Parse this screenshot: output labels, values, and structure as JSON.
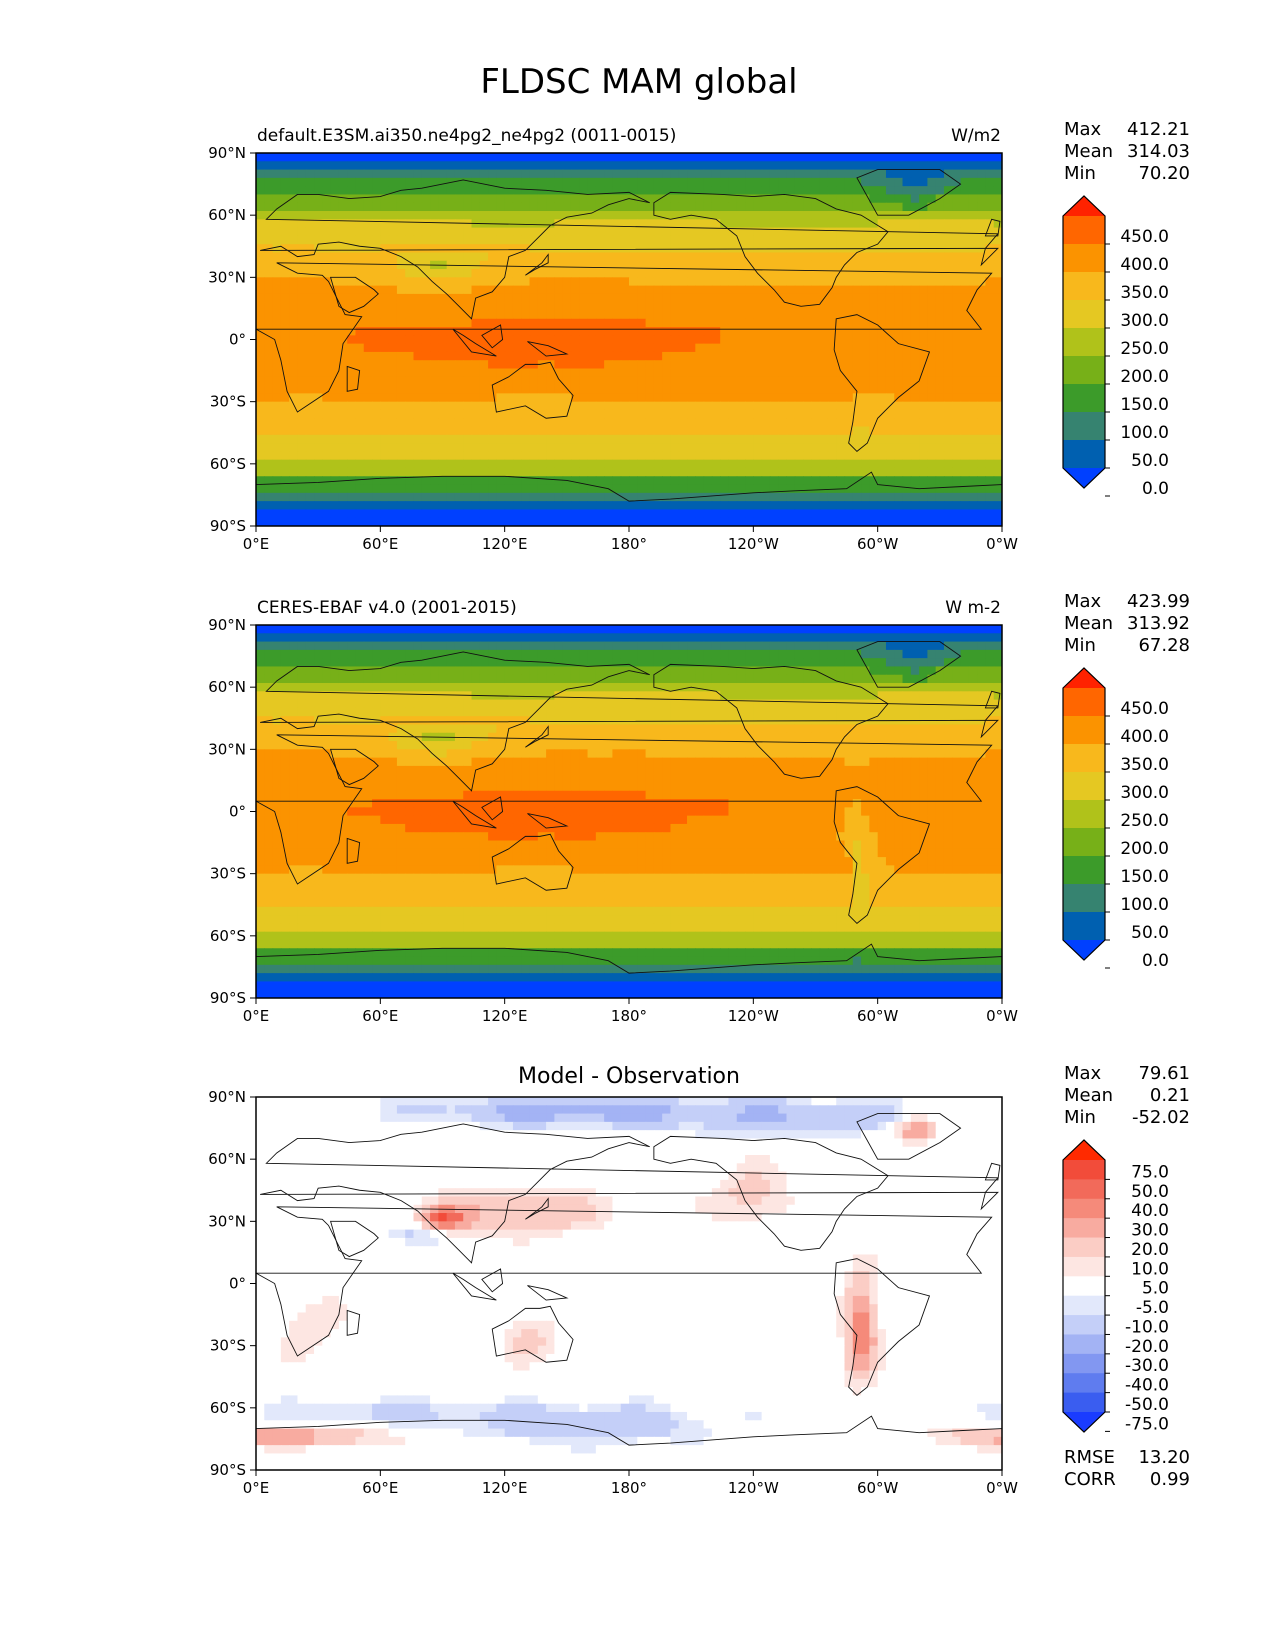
{
  "page_title": "FLDSC MAM global",
  "x_ticks": [
    "0°E",
    "60°E",
    "120°E",
    "180°",
    "120°W",
    "60°W",
    "0°W"
  ],
  "y_ticks": [
    "90°N",
    "60°N",
    "30°N",
    "0°",
    "30°S",
    "60°S",
    "90°S"
  ],
  "chart_data": [
    {
      "type": "heatmap",
      "title": "",
      "left_label": "default.E3SM.ai350.ne4pg2_ne4pg2 (0011-0015)",
      "right_label": "W/m2",
      "stats": [
        {
          "label": "Max",
          "value": "412.21"
        },
        {
          "label": "Mean",
          "value": "314.03"
        },
        {
          "label": "Min",
          "value": "70.20"
        }
      ],
      "colorbar_ticks": [
        "450.0",
        "400.0",
        "350.0",
        "300.0",
        "250.0",
        "200.0",
        "150.0",
        "100.0",
        "50.0",
        "0.0"
      ],
      "colors": [
        "#ff2200",
        "#ff6600",
        "#fb9300",
        "#f8b81c",
        "#e5c822",
        "#b0c21a",
        "#77b018",
        "#3c9b2a",
        "#368370",
        "#0060b0",
        "#0040ff"
      ],
      "xlim": [
        0,
        360
      ],
      "ylim": [
        -90,
        90
      ],
      "field": "model"
    },
    {
      "type": "heatmap",
      "title": "",
      "left_label": "CERES-EBAF v4.0 (2001-2015)",
      "right_label": "W m-2",
      "stats": [
        {
          "label": "Max",
          "value": "423.99"
        },
        {
          "label": "Mean",
          "value": "313.92"
        },
        {
          "label": "Min",
          "value": "67.28"
        }
      ],
      "colorbar_ticks": [
        "450.0",
        "400.0",
        "350.0",
        "300.0",
        "250.0",
        "200.0",
        "150.0",
        "100.0",
        "50.0",
        "0.0"
      ],
      "colors": [
        "#ff2200",
        "#ff6600",
        "#fb9300",
        "#f8b81c",
        "#e5c822",
        "#b0c21a",
        "#77b018",
        "#3c9b2a",
        "#368370",
        "#0060b0",
        "#0040ff"
      ],
      "xlim": [
        0,
        360
      ],
      "ylim": [
        -90,
        90
      ],
      "field": "obs"
    },
    {
      "type": "heatmap",
      "title": "Model - Observation",
      "left_label": "",
      "right_label": "",
      "stats": [
        {
          "label": "Max",
          "value": "79.61"
        },
        {
          "label": "Mean",
          "value": "0.21"
        },
        {
          "label": "Min",
          "value": "-52.02"
        }
      ],
      "colorbar_ticks": [
        "75.0",
        "50.0",
        "40.0",
        "30.0",
        "20.0",
        "10.0",
        "5.0",
        "-5.0",
        "-10.0",
        "-20.0",
        "-30.0",
        "-40.0",
        "-50.0",
        "-75.0"
      ],
      "colors": [
        "#ff2a00",
        "#f24c3a",
        "#f26a5a",
        "#f58a7a",
        "#f8aba0",
        "#fbcdc5",
        "#fde6e2",
        "#ffffff",
        "#e2e8fb",
        "#c4cff8",
        "#a3b3f4",
        "#8297f1",
        "#5f7cef",
        "#3a5df0",
        "#1a3cff"
      ],
      "xlim": [
        0,
        360
      ],
      "ylim": [
        -90,
        90
      ],
      "field": "diff",
      "extra_stats": [
        {
          "label": "RMSE",
          "value": "13.20"
        },
        {
          "label": "CORR",
          "value": "0.99"
        }
      ]
    }
  ]
}
